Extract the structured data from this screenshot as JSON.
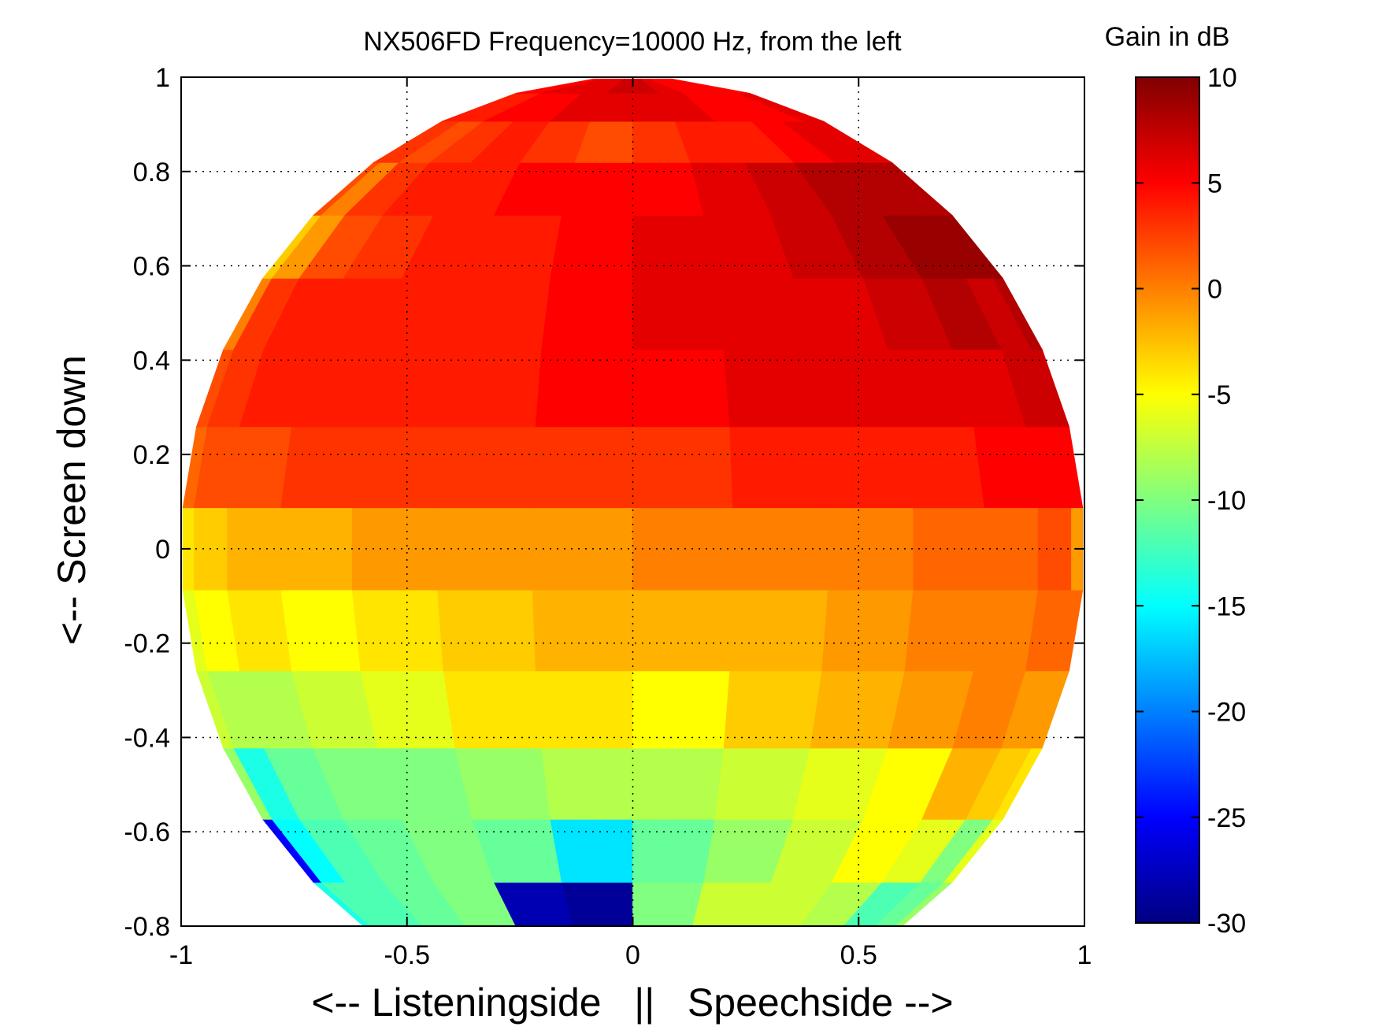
{
  "chart_data": {
    "type": "heatmap",
    "title": "NX506FD Frequency=10000 Hz, from the left",
    "xlabel": "<-- Listeningside   ||   Speechside -->",
    "ylabel": "<-- Screen down",
    "xlim": [
      -1,
      1
    ],
    "ylim": [
      -0.8,
      1
    ],
    "x_ticks": [
      -1,
      -0.5,
      0,
      0.5,
      1
    ],
    "x_tick_labels": [
      "-1",
      "-0.5",
      "0",
      "0.5",
      "1"
    ],
    "y_ticks": [
      1,
      0.8,
      0.6,
      0.4,
      0.2,
      0,
      -0.2,
      -0.4,
      -0.6,
      -0.8
    ],
    "y_tick_labels": [
      "1",
      "0.8",
      "0.6",
      "0.4",
      "0.2",
      "0",
      "-0.2",
      "-0.4",
      "-0.6",
      "-0.8"
    ],
    "grid": true,
    "colormap": "jet",
    "colorbar": {
      "title": "Gain in dB",
      "range": [
        -30,
        10
      ],
      "ticks": [
        10,
        5,
        0,
        -5,
        -10,
        -15,
        -20,
        -25,
        -30
      ],
      "tick_labels": [
        "10",
        "5",
        "0",
        "-5",
        "-10",
        "-15",
        "-20",
        "-25",
        "-30"
      ]
    },
    "grid_cells": {
      "description_units": "Gain in dB per patch; bands indexed by elevation angle (deg), columns by azimuth across the hemisphere from left to right",
      "band_elevations_deg": [
        -50,
        -40,
        -30,
        -20,
        -10,
        0,
        10,
        20,
        30,
        40,
        50,
        60,
        70,
        80
      ],
      "columns_per_band": 14,
      "gain_db": [
        [
          -14,
          -12,
          -12,
          -11,
          -10,
          -28,
          -29,
          -10,
          -7,
          -7,
          -8,
          -12,
          -11,
          -9
        ],
        [
          -25,
          -15,
          -12,
          -11,
          -10,
          -11,
          -16,
          -11,
          -9,
          -7,
          -5,
          -6,
          -10,
          -6
        ],
        [
          -9,
          -14,
          -11,
          -10,
          -10,
          -9,
          -8,
          -8,
          -7,
          -6,
          -5,
          -2,
          -3,
          -4
        ],
        [
          -7,
          -8,
          -8,
          -7,
          -6,
          -4,
          -4,
          -5,
          -3,
          -2,
          -1,
          0,
          -1,
          -1
        ],
        [
          -6,
          -5,
          -4,
          -5,
          -4,
          -3,
          -2,
          -2,
          -2,
          -1,
          0,
          0,
          1,
          1
        ],
        [
          -4,
          -3,
          -2,
          -2,
          -1,
          -1,
          -1,
          0,
          0,
          0,
          1,
          1,
          2,
          -1
        ],
        [
          1,
          2,
          2,
          3,
          3,
          3,
          3,
          3,
          4,
          4,
          4,
          5,
          5,
          5
        ],
        [
          2,
          3,
          4,
          4,
          4,
          4,
          5,
          5,
          6,
          6,
          6,
          6,
          7,
          7
        ],
        [
          0,
          3,
          4,
          4,
          4,
          4,
          5,
          6,
          6,
          6,
          7,
          8,
          7,
          8
        ],
        [
          -3,
          -1,
          2,
          3,
          4,
          4,
          5,
          6,
          6,
          7,
          8,
          9,
          9,
          9
        ],
        [
          2,
          0,
          3,
          4,
          4,
          5,
          5,
          5,
          6,
          7,
          8,
          8,
          8,
          8
        ],
        [
          3,
          3,
          2,
          3,
          4,
          3,
          2,
          3,
          4,
          4,
          5,
          6,
          6,
          6
        ],
        [
          4,
          4,
          4,
          5,
          5,
          6,
          6,
          6,
          6,
          5,
          5,
          5,
          6,
          6
        ],
        [
          5,
          5,
          5,
          6,
          6,
          6,
          7,
          7,
          6,
          5,
          5,
          5,
          5,
          5
        ]
      ]
    }
  }
}
